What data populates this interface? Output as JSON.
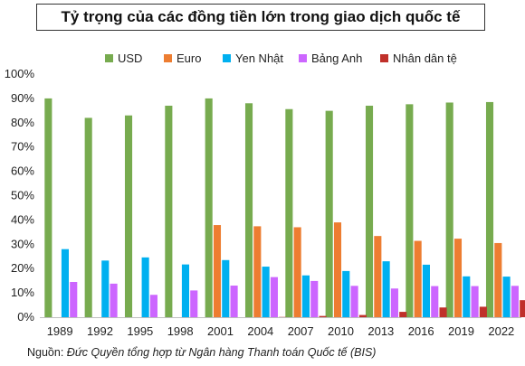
{
  "chart_data": {
    "type": "bar",
    "title": "Tỷ trọng của các đồng tiền lớn trong giao dịch quốc tế",
    "categories": [
      "1989",
      "1992",
      "1995",
      "1998",
      "2001",
      "2004",
      "2007",
      "2010",
      "2013",
      "2016",
      "2019",
      "2022"
    ],
    "ylim": [
      0,
      100
    ],
    "yticks": [
      "0%",
      "10%",
      "20%",
      "30%",
      "40%",
      "50%",
      "60%",
      "70%",
      "80%",
      "90%",
      "100%"
    ],
    "grid": false,
    "legend": "top",
    "series": [
      {
        "name": "USD",
        "color": "#77ab4f",
        "values": [
          90,
          82,
          83,
          87,
          90,
          88,
          85.6,
          84.9,
          87,
          87.6,
          88.3,
          88.5
        ]
      },
      {
        "name": "Euro",
        "color": "#ed7d31",
        "values": [
          0,
          0,
          0,
          0,
          37.9,
          37.4,
          37,
          39,
          33.4,
          31.4,
          32.3,
          30.5
        ]
      },
      {
        "name": "Yen Nhật",
        "color": "#00b0f0",
        "values": [
          28,
          23.3,
          24.6,
          21.7,
          23.5,
          20.8,
          17.2,
          19,
          23,
          21.6,
          16.8,
          16.7
        ]
      },
      {
        "name": "Bảng Anh",
        "color": "#cc66ff",
        "values": [
          14.5,
          13.8,
          9.2,
          11,
          13,
          16.5,
          14.9,
          12.9,
          11.8,
          12.8,
          12.8,
          12.9
        ]
      },
      {
        "name": "Nhân dân tệ",
        "color": "#c0302a",
        "values": [
          0,
          0,
          0,
          0,
          0,
          0.1,
          0.5,
          0.9,
          2.2,
          4,
          4.3,
          7
        ]
      }
    ]
  },
  "source": {
    "label": "Nguồn:",
    "text": "Đức Quyền tổng hợp từ Ngân hàng Thanh toán Quốc tế (BIS)"
  }
}
